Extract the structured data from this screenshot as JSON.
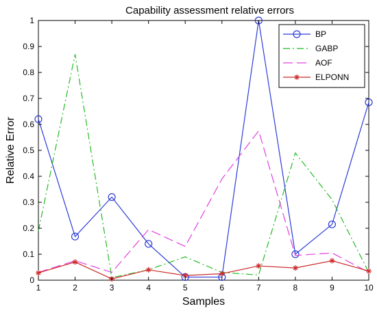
{
  "chart_data": {
    "type": "line",
    "title": "Capability assessment relative errors",
    "xlabel": "Samples",
    "ylabel": "Relative Error",
    "x": [
      1,
      2,
      3,
      4,
      5,
      6,
      7,
      8,
      9,
      10
    ],
    "xlim": [
      1,
      10
    ],
    "ylim": [
      0,
      1
    ],
    "xticks": [
      "1",
      "2",
      "3",
      "4",
      "5",
      "6",
      "7",
      "8",
      "9",
      "10"
    ],
    "yticks": [
      "0",
      "0.1",
      "0.2",
      "0.3",
      "0.4",
      "0.5",
      "0.6",
      "0.7",
      "0.8",
      "0.9",
      "1"
    ],
    "grid": false,
    "legend_position": "top-right",
    "series": [
      {
        "name": "BP",
        "color": "#2b3bd6",
        "dash": "solid",
        "marker": "circle",
        "values": [
          0.62,
          0.168,
          0.32,
          0.14,
          0.012,
          0.012,
          1.0,
          0.1,
          0.215,
          0.685
        ]
      },
      {
        "name": "GABP",
        "color": "#22bb22",
        "dash": "dashdot",
        "marker": "none",
        "values": [
          0.19,
          0.87,
          0.01,
          0.04,
          0.09,
          0.03,
          0.02,
          0.49,
          0.31,
          0.03
        ]
      },
      {
        "name": "AOF",
        "color": "#e040e0",
        "dash": "dashed",
        "marker": "none",
        "values": [
          0.03,
          0.075,
          0.03,
          0.195,
          0.13,
          0.39,
          0.575,
          0.095,
          0.105,
          0.03
        ]
      },
      {
        "name": "ELPONN",
        "color": "#cc2a2a",
        "dash": "solid",
        "marker": "star",
        "values": [
          0.028,
          0.07,
          0.005,
          0.04,
          0.018,
          0.025,
          0.055,
          0.047,
          0.075,
          0.035
        ]
      }
    ]
  }
}
